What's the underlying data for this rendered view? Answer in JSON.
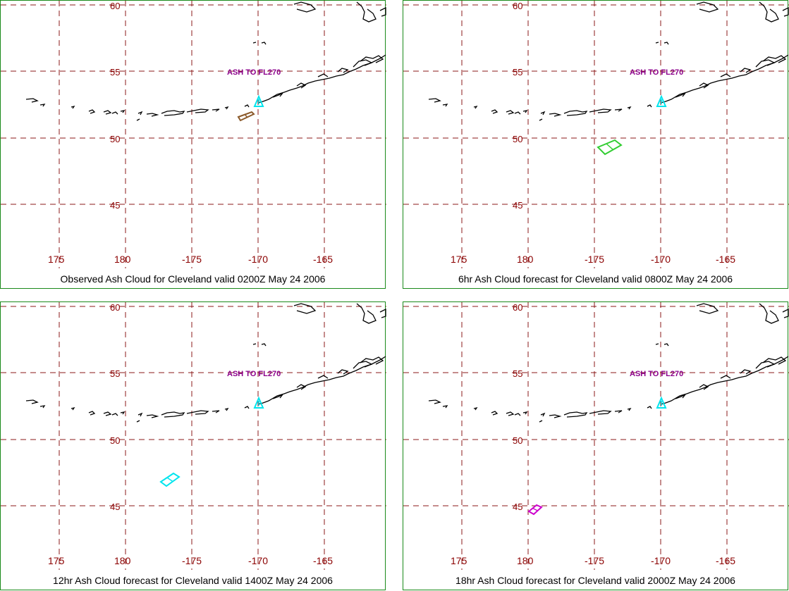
{
  "grid_color": "#8b1a1a",
  "frame_color": "#1a8a1a",
  "label_color": "#8b0000",
  "ash_label_color": "#8b008b",
  "volcano_color": "#00e5ee",
  "lon_labels": [
    "175",
    "180",
    "-175",
    "-170",
    "-165"
  ],
  "lat_labels": [
    "60",
    "55",
    "50",
    "45"
  ],
  "panels": [
    {
      "caption": "Observed Ash Cloud for Cleveland valid 0200Z May 24 2006",
      "ash_label": "ASH TO FL270",
      "cloud_color": "#8b5a2b"
    },
    {
      "caption": "6hr Ash Cloud forecast for Cleveland valid 0800Z May 24 2006",
      "ash_label": "ASH TO FL270",
      "cloud_color": "#32cd32"
    },
    {
      "caption": "12hr Ash Cloud forecast for Cleveland valid 1400Z May 24 2006",
      "ash_label": "ASH TO FL270",
      "cloud_color": "#00e5ee"
    },
    {
      "caption": "18hr Ash Cloud forecast for Cleveland valid 2000Z May 24 2006",
      "ash_label": "ASH TO FL270",
      "cloud_color": "#cc00cc"
    }
  ]
}
